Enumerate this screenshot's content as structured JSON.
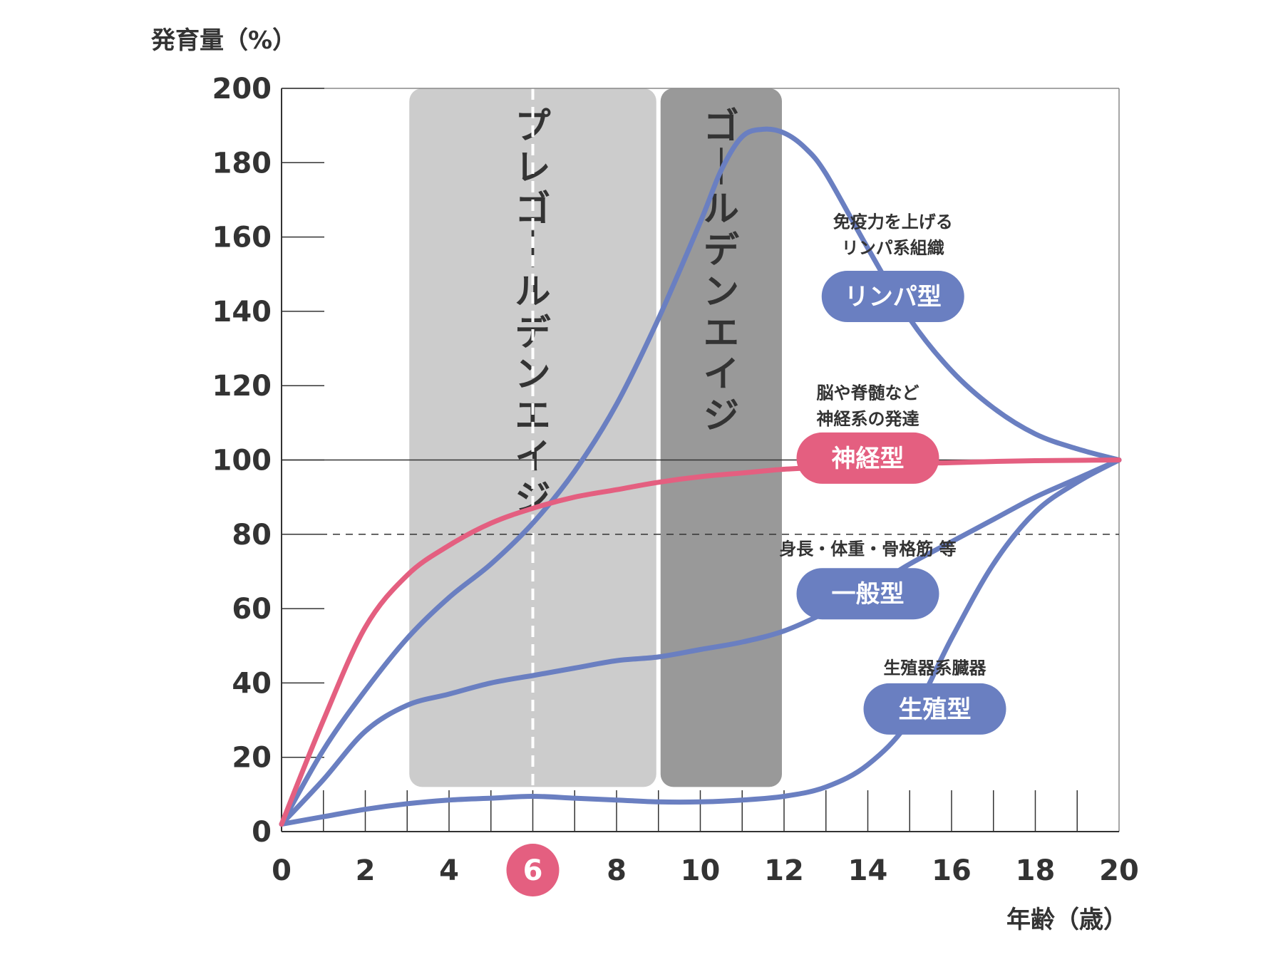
{
  "chart_data": {
    "type": "line",
    "ylabel": "発育量（%）",
    "xlabel": "年齢（歳）",
    "xlim": [
      0,
      20
    ],
    "ylim": [
      0,
      200
    ],
    "x_ticks": [
      0,
      2,
      4,
      6,
      8,
      10,
      12,
      14,
      16,
      18,
      20
    ],
    "y_ticks": [
      0,
      20,
      40,
      60,
      80,
      100,
      120,
      140,
      160,
      180,
      200
    ],
    "highlight_x": 6,
    "highlight_x_label": "6",
    "reference_lines": [
      {
        "y": 100,
        "style": "solid"
      },
      {
        "y": 80,
        "style": "dashed"
      }
    ],
    "bands": [
      {
        "label": "プレゴールデンエイジ",
        "x_start": 3,
        "x_end": 9,
        "y_bottom": 12,
        "y_top": 200,
        "color": "#cccccc"
      },
      {
        "label": "ゴールデンエイジ",
        "x_start": 9,
        "x_end": 12,
        "y_bottom": 12,
        "y_top": 200,
        "color": "#999999"
      }
    ],
    "series": [
      {
        "name": "リンパ型",
        "note": [
          "免疫力を上げる",
          "リンパ系組織"
        ],
        "color": "#6a7fc1",
        "x": [
          0,
          1,
          2,
          3,
          4,
          5,
          6,
          7,
          8,
          9,
          10,
          10.5,
          11,
          11.5,
          12,
          12.5,
          13,
          14,
          15,
          16,
          17,
          18,
          19,
          20
        ],
        "y": [
          2,
          22,
          38,
          52,
          63,
          72,
          83,
          97,
          115,
          138,
          164,
          178,
          187,
          189,
          188,
          184,
          177,
          157,
          138,
          124,
          114,
          107,
          103,
          100
        ]
      },
      {
        "name": "神経型",
        "note": [
          "脳や脊髄など",
          "神経系の発達"
        ],
        "color": "#e45f80",
        "x": [
          0,
          1,
          2,
          3,
          4,
          5,
          6,
          7,
          8,
          9,
          10,
          11,
          12,
          13,
          14,
          15,
          16,
          17,
          18,
          19,
          20
        ],
        "y": [
          2,
          30,
          55,
          69,
          77,
          83,
          87,
          90,
          92,
          94,
          95.5,
          96.5,
          97.5,
          98,
          98.5,
          99,
          99.3,
          99.6,
          99.8,
          99.9,
          100
        ]
      },
      {
        "name": "一般型",
        "note": [
          "身長・体重・骨格筋 等"
        ],
        "color": "#6a7fc1",
        "x": [
          0,
          1,
          2,
          3,
          4,
          5,
          6,
          7,
          8,
          9,
          10,
          11,
          12,
          13,
          14,
          15,
          16,
          17,
          18,
          19,
          20
        ],
        "y": [
          2,
          14,
          27,
          34,
          37,
          40,
          42,
          44,
          46,
          47,
          49,
          51,
          54,
          59,
          65,
          72,
          78,
          84,
          90,
          95,
          100
        ]
      },
      {
        "name": "生殖型",
        "note": [
          "生殖器系臓器"
        ],
        "color": "#6a7fc1",
        "x": [
          0,
          1,
          2,
          3,
          4,
          5,
          6,
          7,
          8,
          9,
          10,
          11,
          12,
          13,
          14,
          15,
          16,
          17,
          18,
          19,
          20
        ],
        "y": [
          2,
          4,
          6,
          7.5,
          8.5,
          9,
          9.5,
          9,
          8.5,
          8,
          8,
          8.5,
          9.5,
          12,
          18,
          30,
          52,
          72,
          86,
          94,
          100
        ]
      }
    ],
    "labels": [
      {
        "series": "リンパ型",
        "x": 14.6,
        "y": 144,
        "note_y": [
          164,
          157
        ]
      },
      {
        "series": "神経型",
        "x": 14.0,
        "y": 100.5,
        "note_y": [
          118,
          111
        ]
      },
      {
        "series": "一般型",
        "x": 14.0,
        "y": 64,
        "note_y": [
          76
        ]
      },
      {
        "series": "生殖型",
        "x": 15.6,
        "y": 33,
        "note_y": [
          44
        ]
      }
    ]
  }
}
